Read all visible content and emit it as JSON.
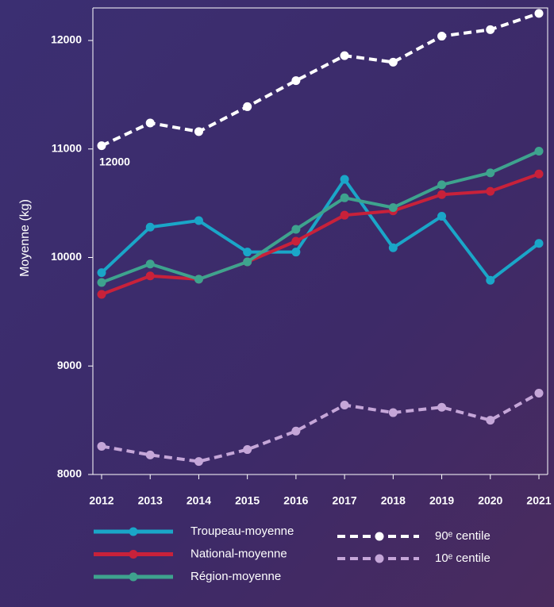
{
  "chart_data": {
    "type": "line",
    "y_label": "Moyenne (kg)",
    "annotation": "12000",
    "categories": [
      "2012",
      "2013",
      "2014",
      "2015",
      "2016",
      "2017",
      "2018",
      "2019",
      "2020",
      "2021"
    ],
    "ylim": [
      8000,
      12300
    ],
    "yticks": [
      8000,
      9000,
      10000,
      11000,
      12000
    ],
    "series": [
      {
        "name": "Troupeau-moyenne",
        "color": "#1aa6c8",
        "dashed": false,
        "values": [
          9860,
          10280,
          10340,
          10050,
          10050,
          10720,
          10090,
          10380,
          9790,
          10130
        ]
      },
      {
        "name": "National-moyenne",
        "color": "#c8213a",
        "dashed": false,
        "values": [
          9660,
          9830,
          9800,
          9960,
          10150,
          10390,
          10430,
          10580,
          10610,
          10770
        ]
      },
      {
        "name": "Région-moyenne",
        "color": "#3ea38e",
        "dashed": false,
        "values": [
          9770,
          9940,
          9800,
          9960,
          10260,
          10550,
          10460,
          10670,
          10780,
          10980
        ]
      },
      {
        "name": "90ᵉ centile",
        "color": "#ffffff",
        "dashed": true,
        "values": [
          11030,
          11240,
          11160,
          11390,
          11630,
          11860,
          11800,
          12040,
          12100,
          12250
        ]
      },
      {
        "name": "10ᵉ centile",
        "color": "#c5a6d8",
        "dashed": true,
        "values": [
          8260,
          8180,
          8120,
          8230,
          8400,
          8640,
          8570,
          8620,
          8500,
          8750
        ]
      }
    ]
  }
}
